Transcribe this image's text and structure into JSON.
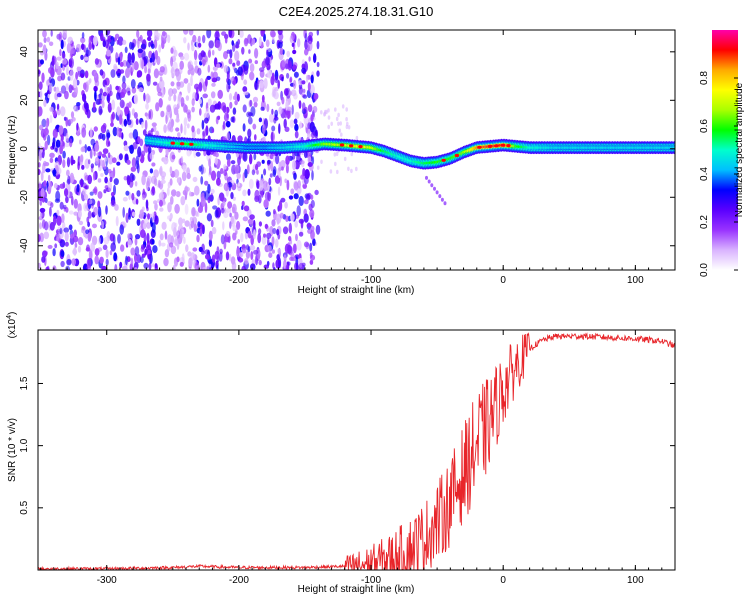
{
  "title": "C2E4.2025.274.18.31.G10",
  "chart_data": [
    {
      "type": "heatmap",
      "xlabel": "Height of straight line (km)",
      "ylabel": "Frequency (Hz)",
      "xlim": [
        -352,
        130
      ],
      "ylim": [
        -50,
        49
      ],
      "x_ticks": [
        "-300",
        "-200",
        "-100",
        "0",
        "100"
      ],
      "y_ticks": [
        "-40",
        "-20",
        "0",
        "20",
        "40"
      ],
      "colorbar": {
        "label": "Normalized spectral amplitude",
        "ticks": [
          "0.0",
          "0.2",
          "0.4",
          "0.6",
          "0.8"
        ],
        "range": [
          0,
          1
        ],
        "colors": [
          "#ffffff",
          "#d9b3ff",
          "#9933ff",
          "#5a00ff",
          "#0000ff",
          "#00bfff",
          "#00ffcc",
          "#00ff00",
          "#aaff00",
          "#ffff00",
          "#ffaa00",
          "#ff0000",
          "#ff00aa"
        ]
      },
      "signal_track": {
        "x": [
          -270,
          -255,
          -240,
          -225,
          -210,
          -195,
          -180,
          -165,
          -150,
          -135,
          -120,
          -110,
          -100,
          -90,
          -80,
          -70,
          -60,
          -50,
          -40,
          -30,
          -20,
          -10,
          0,
          10,
          20,
          40,
          60,
          80,
          100,
          130
        ],
        "y": [
          3.5,
          2.5,
          2,
          1.5,
          1,
          0.5,
          0.5,
          0.5,
          1,
          2,
          1.5,
          1,
          0.5,
          -1,
          -3,
          -5,
          -6,
          -5.5,
          -4,
          -1.5,
          0.5,
          1,
          1.5,
          1,
          0.5,
          0.5,
          0.5,
          0.5,
          0.5,
          0.5
        ],
        "amplitude": [
          0.45,
          0.5,
          0.6,
          0.5,
          0.45,
          0.4,
          0.4,
          0.45,
          0.5,
          0.65,
          0.7,
          0.75,
          0.7,
          0.55,
          0.5,
          0.5,
          0.55,
          0.6,
          0.6,
          0.65,
          0.85,
          0.9,
          0.9,
          0.6,
          0.5,
          0.45,
          0.45,
          0.45,
          0.45,
          0.45
        ]
      },
      "noise_region_x": [
        -352,
        -140
      ]
    },
    {
      "type": "line",
      "xlabel": "Height of straight line (km)",
      "ylabel": "SNR (10 * v/v)",
      "multiplier": "(x10^4)",
      "multiplier_base": "(x10",
      "multiplier_exp": "4",
      "multiplier_close": ")",
      "xlim": [
        -352,
        130
      ],
      "ylim": [
        0,
        1.93
      ],
      "x_ticks": [
        "-300",
        "-200",
        "-100",
        "0",
        "100"
      ],
      "y_ticks": [
        "0.5",
        "1.0",
        "1.5"
      ],
      "color": "#e8252a",
      "series": [
        {
          "x": [
            -352,
            -300,
            -250,
            -230,
            -200,
            -150,
            -120,
            -100,
            -90,
            -80,
            -70,
            -60,
            -50,
            -40,
            -30,
            -20,
            -10,
            0,
            10,
            20,
            30,
            40,
            60,
            80,
            100,
            120,
            130
          ],
          "y": [
            0.01,
            0.01,
            0.02,
            0.03,
            0.02,
            0.02,
            0.03,
            0.05,
            0.08,
            0.12,
            0.18,
            0.26,
            0.38,
            0.55,
            0.78,
            1.0,
            1.2,
            1.45,
            1.65,
            1.78,
            1.85,
            1.88,
            1.88,
            1.87,
            1.86,
            1.84,
            1.8
          ]
        }
      ]
    }
  ]
}
